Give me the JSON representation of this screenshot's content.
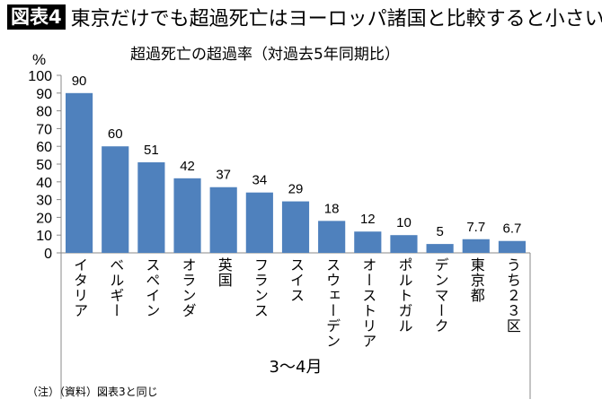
{
  "header": {
    "badge": "図表4",
    "title": "東京だけでも超過死亡はヨーロッパ諸国と比較すると小さい"
  },
  "chart_data": {
    "type": "bar",
    "title": "超過死亡の超過率（対過去5年同期比）",
    "ylabel": "%",
    "xlabel": "3〜4月",
    "ylim": [
      0,
      100
    ],
    "yticks": [
      0,
      10,
      20,
      30,
      40,
      50,
      60,
      70,
      80,
      90,
      100
    ],
    "categories": [
      "イタリア",
      "ベルギー",
      "スペイン",
      "オランダ",
      "英国",
      "フランス",
      "スイス",
      "スウェーデン",
      "オーストリア",
      "ポルトガル",
      "デンマーク",
      "東京都",
      "うち２３区"
    ],
    "values": [
      90,
      60,
      51,
      42,
      37,
      34,
      29,
      18,
      12,
      10,
      5,
      7.7,
      6.7
    ],
    "data_labels": [
      "90",
      "60",
      "51",
      "42",
      "37",
      "34",
      "29",
      "18",
      "12",
      "10",
      "5",
      "7.7",
      "6.7"
    ],
    "bar_color": "#4f81bd",
    "grid": false,
    "legend": "none"
  },
  "footer": {
    "note": "（注）（資料）図表3と同じ"
  }
}
